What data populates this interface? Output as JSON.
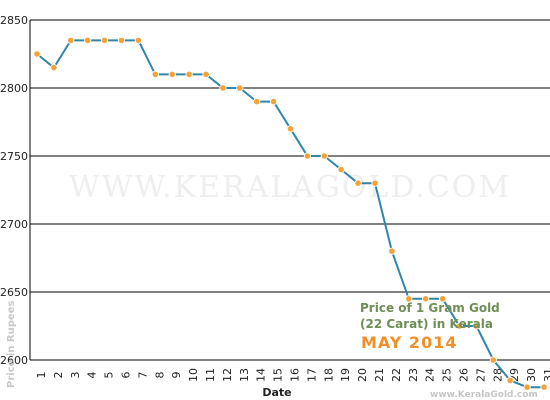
{
  "chart_data": {
    "type": "line",
    "title": "Price of 1 Gram Gold",
    "title_line2": "(22 Carat) in Kerala",
    "subtitle": "MAY 2014",
    "xlabel": "Date",
    "ylabel": "Price in Rupees",
    "x": [
      1,
      2,
      3,
      4,
      5,
      6,
      7,
      8,
      9,
      10,
      11,
      12,
      13,
      14,
      15,
      16,
      17,
      18,
      19,
      20,
      21,
      22,
      23,
      24,
      25,
      26,
      27,
      28,
      29,
      30,
      31
    ],
    "y": [
      2825,
      2815,
      2835,
      2835,
      2835,
      2835,
      2835,
      2810,
      2810,
      2810,
      2810,
      2800,
      2800,
      2790,
      2790,
      2770,
      2750,
      2750,
      2740,
      2730,
      2730,
      2680,
      2645,
      2645,
      2645,
      2625,
      2625,
      2600,
      2585,
      2580,
      2580
    ],
    "ylim": [
      2600,
      2850
    ],
    "yticks": [
      2600,
      2650,
      2700,
      2750,
      2800,
      2850
    ],
    "grid": true,
    "line_color": "#2f86a8",
    "marker_color": "#f5a23a",
    "watermark": "WWW.KERALAGOLD.COM",
    "credit": "www.KeralaGold.com"
  }
}
